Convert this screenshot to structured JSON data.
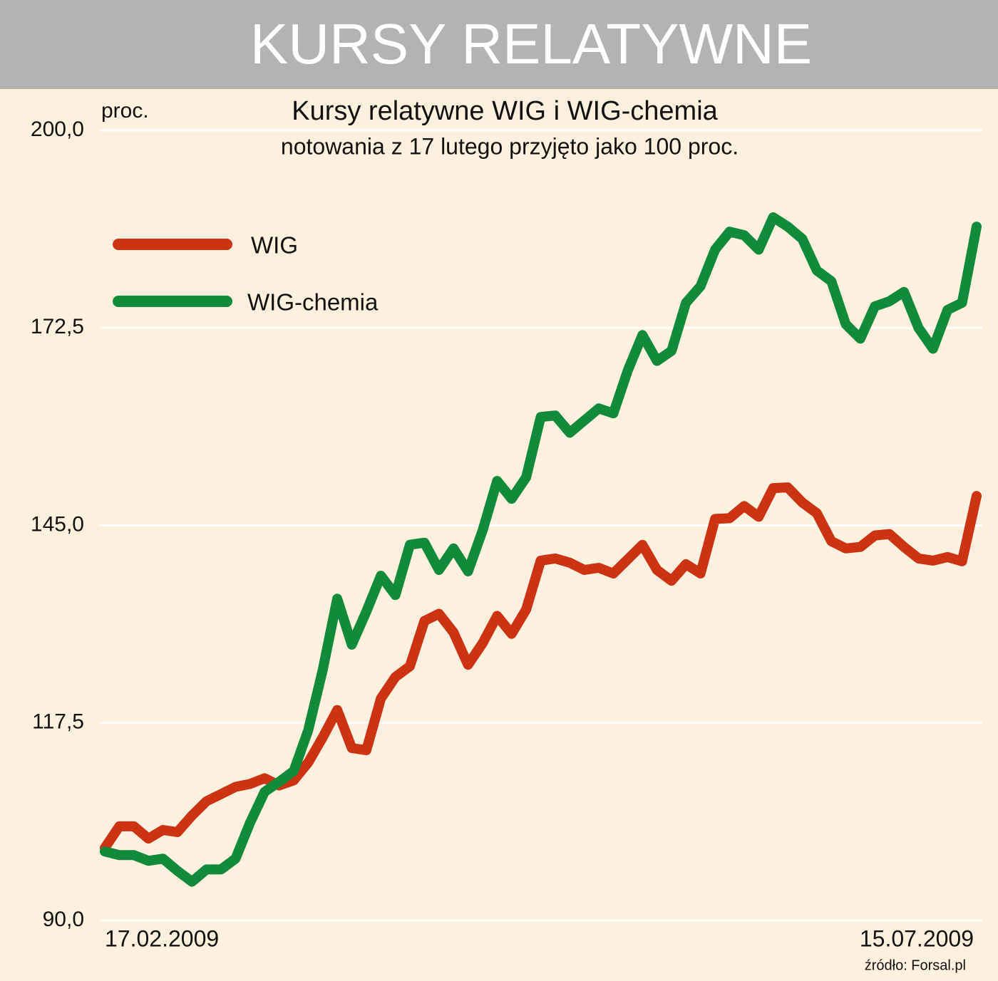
{
  "chart_data": {
    "type": "line",
    "banner": "KURSY RELATYWNE",
    "title": "Kursy relatywne WIG i WIG-chemia",
    "subtitle": "notowania z 17 lutego przyjęto jako 100 proc.",
    "y_label": "proc.",
    "source": "źródło: Forsal.pl",
    "categories": [
      "17.02.2009",
      null,
      null,
      null,
      null,
      null,
      null,
      null,
      null,
      null,
      null,
      null,
      null,
      null,
      null,
      null,
      null,
      null,
      null,
      null,
      null,
      null,
      null,
      null,
      null,
      null,
      null,
      null,
      null,
      null,
      null,
      null,
      null,
      null,
      null,
      null,
      null,
      null,
      null,
      null,
      null,
      null,
      null,
      null,
      null,
      null,
      null,
      null,
      null,
      null,
      null,
      null,
      null,
      null,
      null,
      null,
      null,
      null,
      null,
      null,
      "15.07.2009"
    ],
    "series": [
      {
        "name": "WIG",
        "color": "#cc3311",
        "values": [
          100.1,
          103.1,
          103.1,
          101.4,
          102.6,
          102.3,
          104.6,
          106.6,
          107.6,
          108.6,
          109.0,
          109.8,
          108.8,
          109.5,
          112.0,
          115.5,
          119.3,
          114.0,
          113.7,
          120.9,
          123.9,
          125.4,
          131.7,
          132.7,
          130.1,
          125.6,
          128.6,
          132.4,
          129.9,
          133.3,
          140.1,
          140.4,
          139.8,
          138.8,
          139.1,
          138.3,
          140.3,
          142.3,
          138.8,
          137.3,
          139.6,
          138.3,
          145.9,
          146.0,
          147.7,
          146.2,
          150.2,
          150.3,
          148.2,
          146.7,
          142.8,
          141.8,
          142.0,
          143.6,
          143.8,
          142.0,
          140.4,
          140.1,
          140.6,
          140.0,
          149.1
        ]
      },
      {
        "name": "WIG-chemia",
        "color": "#118a3b",
        "values": [
          99.6,
          99.1,
          99.1,
          98.3,
          98.6,
          96.9,
          95.4,
          97.1,
          97.1,
          98.6,
          103.6,
          107.9,
          109.3,
          110.8,
          116.5,
          124.9,
          134.8,
          128.4,
          133.0,
          138.0,
          135.3,
          142.3,
          142.6,
          138.8,
          141.8,
          138.6,
          144.3,
          151.2,
          148.7,
          151.7,
          160.1,
          160.3,
          157.9,
          159.6,
          161.3,
          160.6,
          166.6,
          171.5,
          167.9,
          169.3,
          176.0,
          178.3,
          183.4,
          185.9,
          185.4,
          183.4,
          187.9,
          186.6,
          184.9,
          180.5,
          179.0,
          173.0,
          171.0,
          175.5,
          176.2,
          177.5,
          172.5,
          169.6,
          175.0,
          176.0,
          186.6
        ]
      }
    ],
    "ylim": [
      90,
      200
    ],
    "yticks": [
      {
        "value": 90,
        "label": "90,0"
      },
      {
        "value": 117.5,
        "label": "117,5"
      },
      {
        "value": 145,
        "label": "145,0"
      },
      {
        "value": 172.5,
        "label": "172,5"
      },
      {
        "value": 200,
        "label": "200,0"
      }
    ],
    "grid": true,
    "legend": "upper left"
  }
}
